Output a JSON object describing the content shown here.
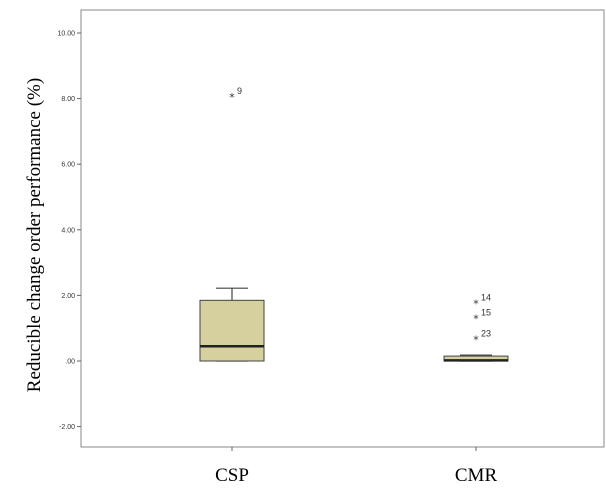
{
  "chart_data": {
    "type": "boxplot",
    "title": "",
    "xlabel": "",
    "ylabel": "Reducible change order performance (%)",
    "ylim": [
      -2.6,
      10.6
    ],
    "yticks": [
      -2,
      0,
      2,
      4,
      6,
      8,
      10
    ],
    "ytick_labels": [
      "-2.00",
      ".00",
      "2.00",
      "4.00",
      "6.00",
      "8.00",
      "10.00"
    ],
    "grid": false,
    "colors": {
      "box_fill": "#d6cf9e",
      "box_stroke": "#444444",
      "median": "#222222",
      "frame": "#888888"
    },
    "categories": [
      "CSP",
      "CMR"
    ],
    "boxes": [
      {
        "category": "CSP",
        "min": 0.0,
        "q1": 0.0,
        "median": 0.45,
        "q3": 1.85,
        "max": 2.22,
        "outliers": [
          {
            "value": 8.05,
            "label": "9"
          }
        ]
      },
      {
        "category": "CMR",
        "min": 0.0,
        "q1": 0.0,
        "median": 0.02,
        "q3": 0.15,
        "max": 0.18,
        "outliers": [
          {
            "value": 1.75,
            "label": "14"
          },
          {
            "value": 1.3,
            "label": "15"
          },
          {
            "value": 0.65,
            "label": "23"
          }
        ]
      }
    ]
  }
}
